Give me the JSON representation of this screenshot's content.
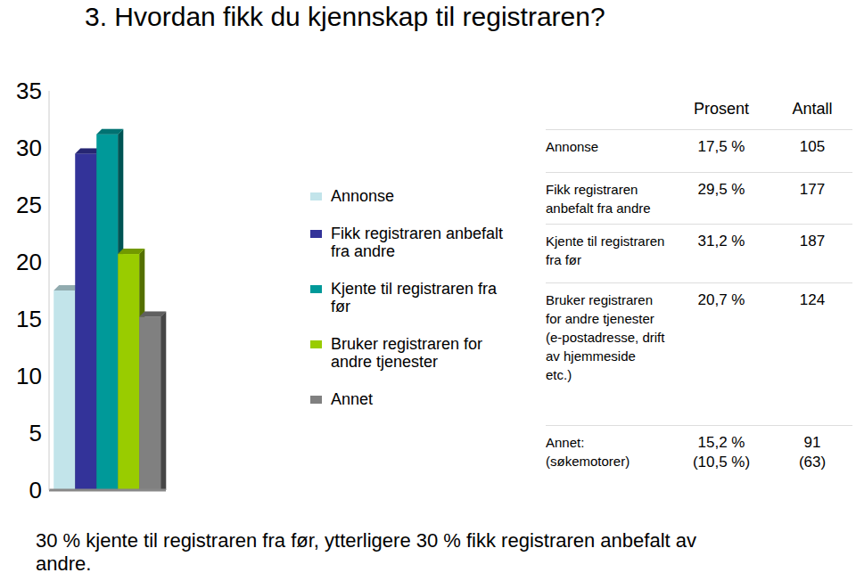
{
  "chart_data": {
    "type": "bar",
    "title": "3. Hvordan fikk du kjennskap til registraren?",
    "categories": [
      null
    ],
    "series": [
      {
        "name": "Annonse",
        "color": "#c2e4ea",
        "values": [
          17.5
        ]
      },
      {
        "name": "Fikk registraren anbefalt fra andre",
        "color": "#333399",
        "values": [
          29.5
        ]
      },
      {
        "name": "Kjente til registraren fra før",
        "color": "#009999",
        "values": [
          31.2
        ]
      },
      {
        "name": "Bruker registraren for andre tjenester",
        "color": "#99cc00",
        "values": [
          20.7
        ]
      },
      {
        "name": "Annet",
        "color": "#808080",
        "values": [
          15.2
        ]
      }
    ],
    "ylim": [
      0,
      35
    ],
    "yticks": [
      0,
      5,
      10,
      15,
      20,
      25,
      30,
      35
    ],
    "grid": false,
    "legend": "right"
  },
  "table": {
    "columns": [
      "Prosent",
      "Antall"
    ],
    "rows": [
      {
        "label": [
          "Annonse"
        ],
        "cells": [
          [
            "17,5 %"
          ],
          [
            "105"
          ]
        ]
      },
      {
        "label": [
          "Fikk registraren anbefalt fra andre"
        ],
        "cells": [
          [
            "29,5 %"
          ],
          [
            "177"
          ]
        ]
      },
      {
        "label": [
          "Kjente til registraren fra før"
        ],
        "cells": [
          [
            "31,2 %"
          ],
          [
            "187"
          ]
        ]
      },
      {
        "label": [
          "Bruker registraren for andre tjenester",
          "(e-postadresse, drift av hjemmeside etc.)"
        ],
        "cells": [
          [
            "20,7 %"
          ],
          [
            "124"
          ]
        ]
      },
      {
        "label": [
          "Annet:",
          "(søkemotorer)"
        ],
        "cells": [
          [
            "15,2 %",
            "(10,5 %)"
          ],
          [
            "91",
            "(63)"
          ]
        ]
      }
    ]
  },
  "footer": "30 % kjente til registraren fra før, ytterligere 30 % fikk registraren anbefalt av andre."
}
